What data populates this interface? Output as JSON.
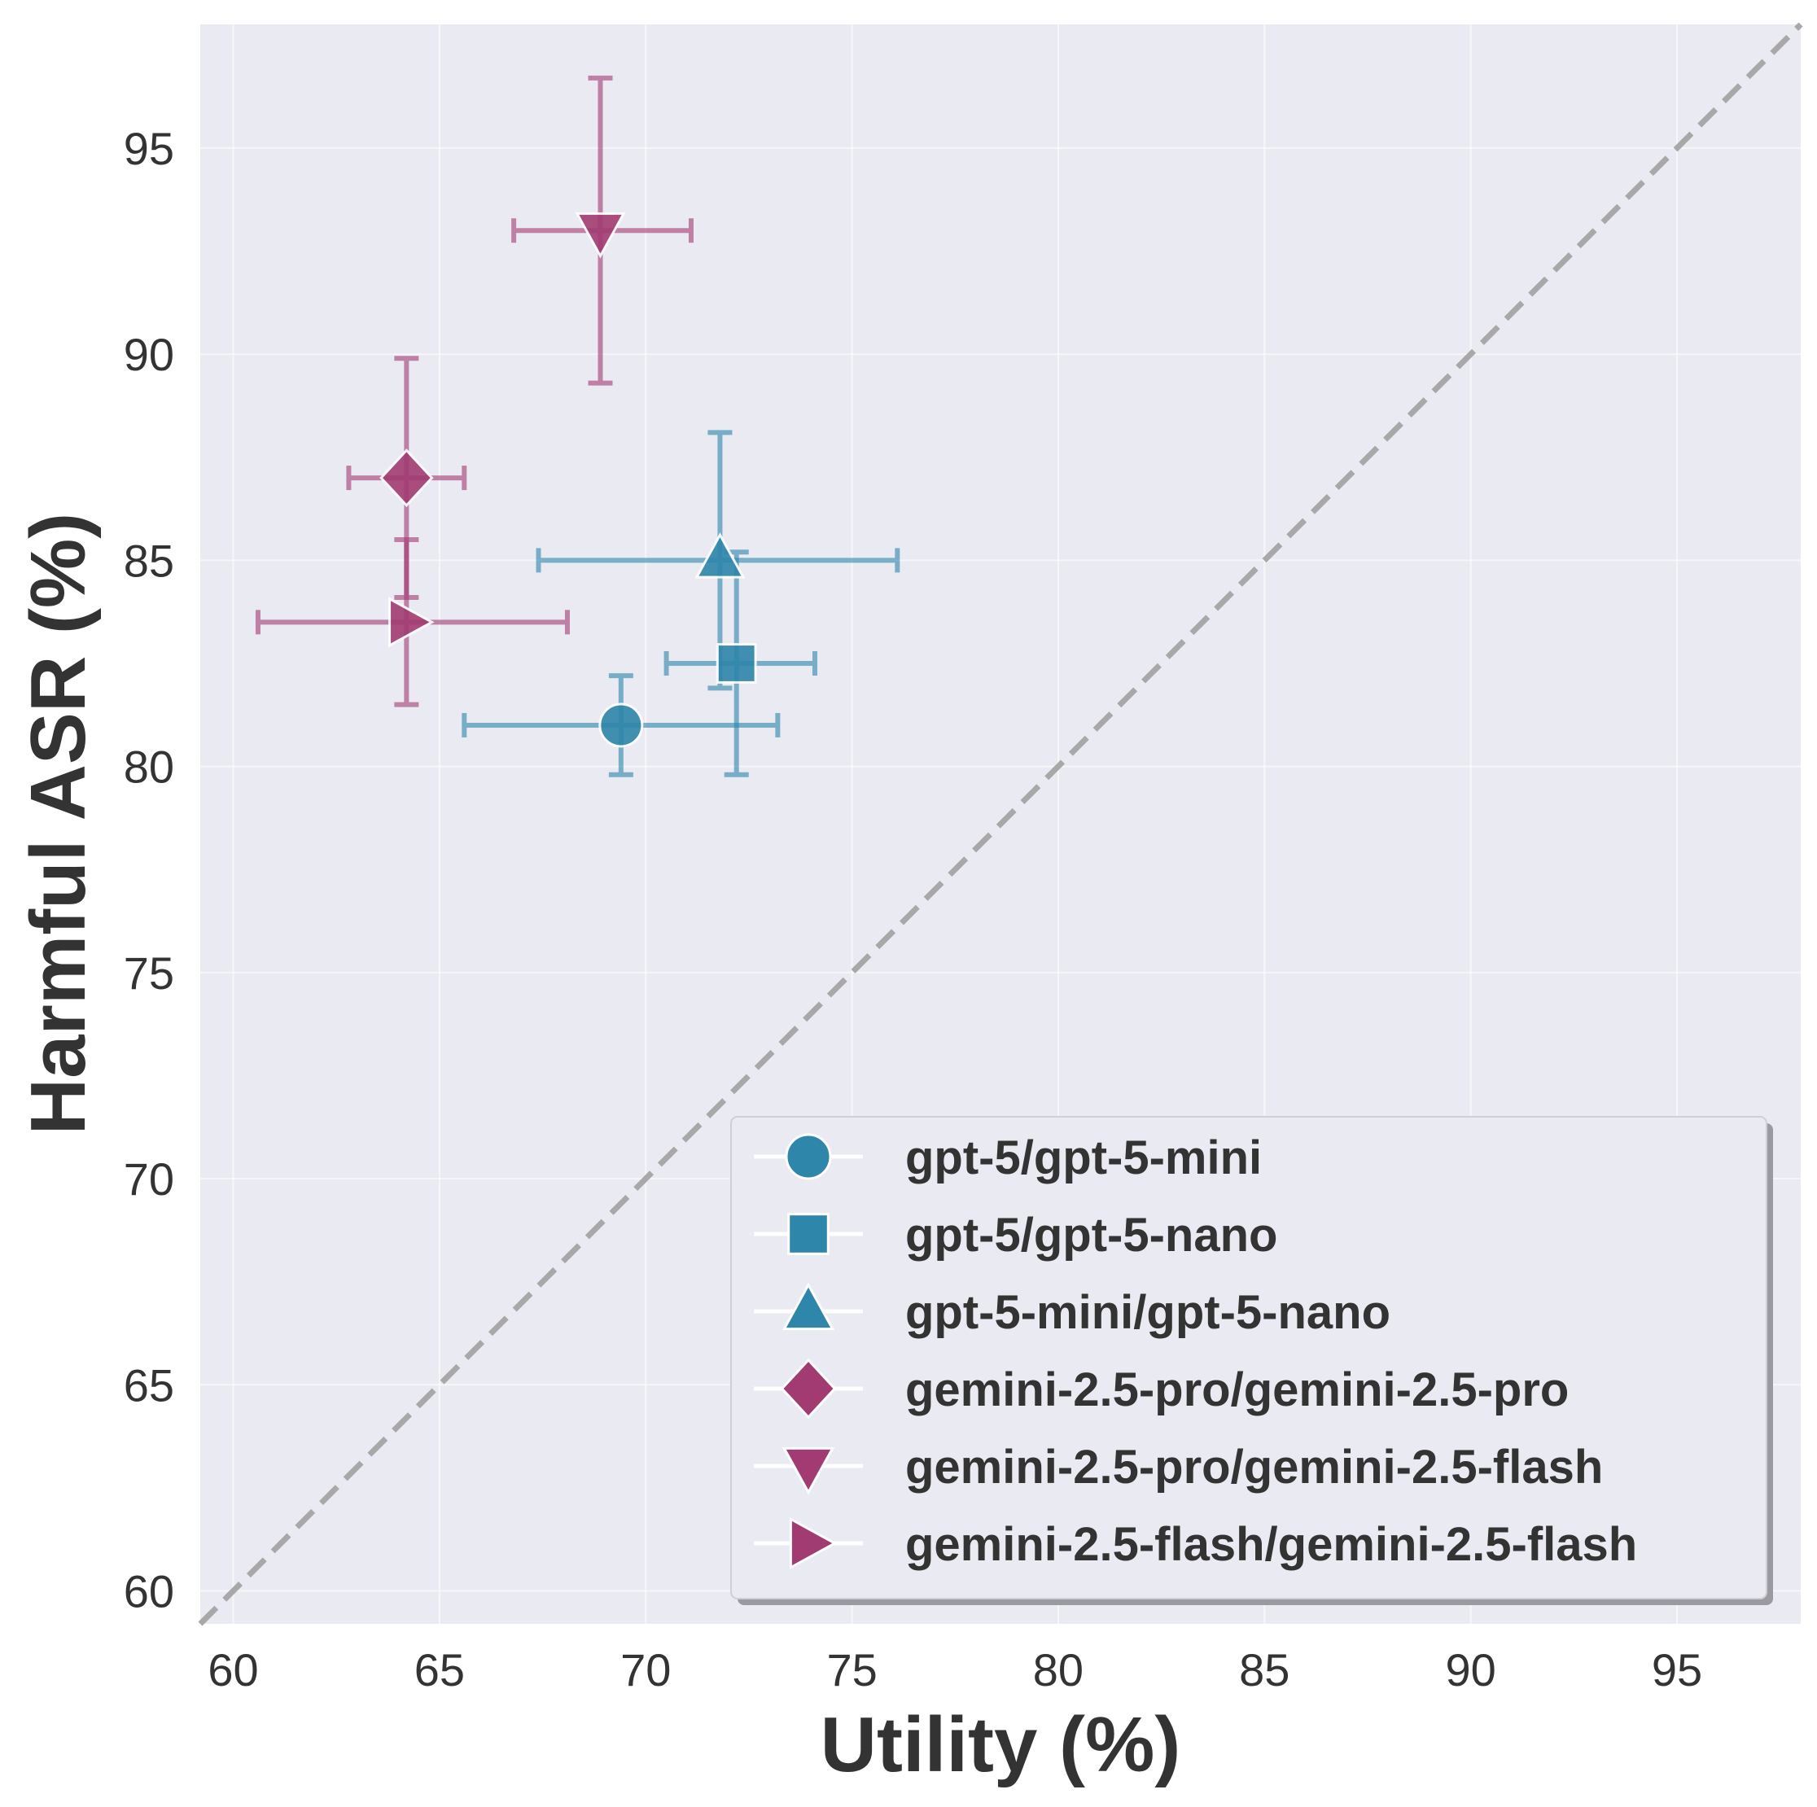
{
  "chart_data": {
    "type": "scatter",
    "title": "",
    "xlabel": "Utility (%)",
    "ylabel": "Harmful ASR (%)",
    "xlim": [
      59.2,
      98.0
    ],
    "ylim": [
      59.2,
      98.0
    ],
    "xticks": [
      60,
      65,
      70,
      75,
      80,
      85,
      90,
      95
    ],
    "yticks": [
      60,
      65,
      70,
      75,
      80,
      85,
      90,
      95
    ],
    "grid": true,
    "reference_line": "y = x (dashed)",
    "legend_position": "bottom-right",
    "colors": {
      "gpt": "#2e86ab",
      "gemini": "#a23b72",
      "reference": "#a8a8a8",
      "background": "#eaeaf2"
    },
    "series": [
      {
        "name": "gpt-5/gpt-5-mini",
        "marker": "circle",
        "color_key": "gpt",
        "x": 69.4,
        "y": 81.0,
        "xerr": [
          65.6,
          73.2
        ],
        "yerr": [
          79.8,
          82.2
        ]
      },
      {
        "name": "gpt-5/gpt-5-nano",
        "marker": "square",
        "color_key": "gpt",
        "x": 72.2,
        "y": 82.5,
        "xerr": [
          70.5,
          74.1
        ],
        "yerr": [
          79.8,
          85.2
        ]
      },
      {
        "name": "gpt-5-mini/gpt-5-nano",
        "marker": "triangle-up",
        "color_key": "gpt",
        "x": 71.8,
        "y": 85.0,
        "xerr": [
          67.4,
          76.1
        ],
        "yerr": [
          81.9,
          88.1
        ]
      },
      {
        "name": "gemini-2.5-pro/gemini-2.5-pro",
        "marker": "diamond",
        "color_key": "gemini",
        "x": 64.2,
        "y": 87.0,
        "xerr": [
          62.8,
          65.6
        ],
        "yerr": [
          84.1,
          89.9
        ]
      },
      {
        "name": "gemini-2.5-pro/gemini-2.5-flash",
        "marker": "triangle-down",
        "color_key": "gemini",
        "x": 68.9,
        "y": 93.0,
        "xerr": [
          66.8,
          71.1
        ],
        "yerr": [
          89.3,
          96.7
        ]
      },
      {
        "name": "gemini-2.5-flash/gemini-2.5-flash",
        "marker": "triangle-right",
        "color_key": "gemini",
        "x": 64.2,
        "y": 83.5,
        "xerr": [
          60.6,
          68.1
        ],
        "yerr": [
          81.5,
          85.5
        ]
      }
    ]
  }
}
